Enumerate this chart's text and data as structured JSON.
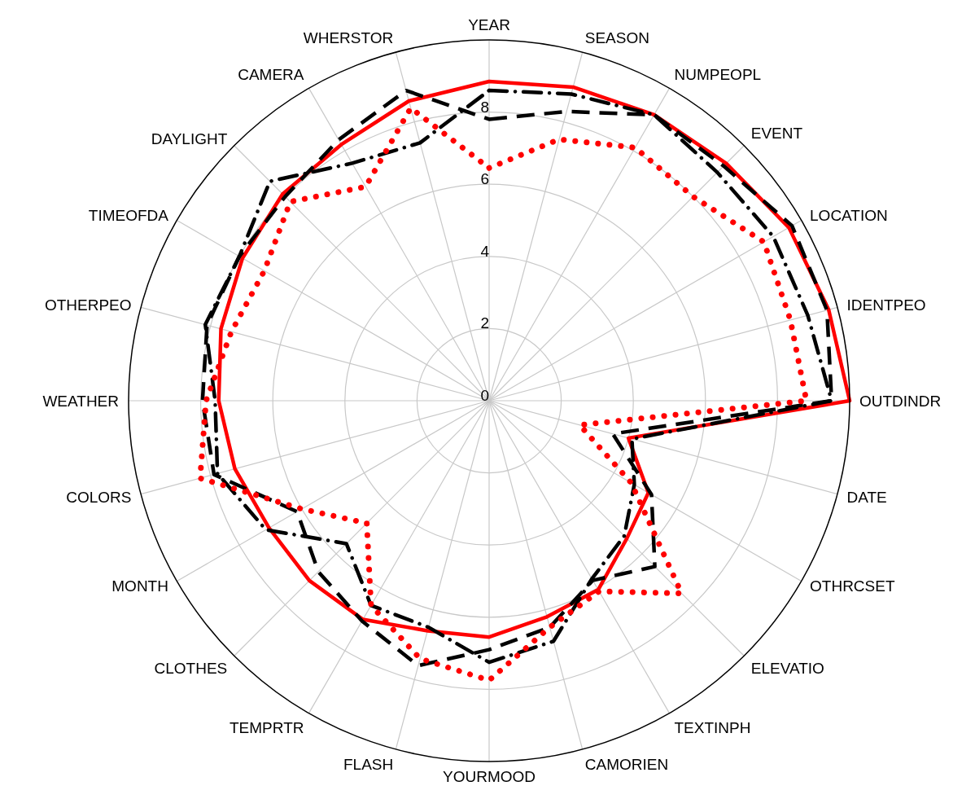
{
  "chart_data": {
    "type": "radar",
    "categories": [
      "YEAR",
      "SEASON",
      "NUMPEOPL",
      "EVENT",
      "LOCATION",
      "IDENTPEO",
      "OUTDINDR",
      "DATE",
      "OTHRCSET",
      "ELEVATIO",
      "TEXTINPH",
      "CAMORIEN",
      "YOURMOOD",
      "FLASH",
      "TEMPRTR",
      "CLOTHES",
      "MONTH",
      "COLORS",
      "WEATHER",
      "OTHERPEO",
      "TIMEOFDA",
      "DAYLIGHT",
      "CAMERA",
      "WHERSTOR"
    ],
    "series": [
      {
        "color": "#ff0000",
        "line_style": "solid",
        "values": [
          8.85,
          9.0,
          9.15,
          9.3,
          9.6,
          9.75,
          10,
          4.0,
          5.1,
          5.4,
          6.05,
          6.2,
          6.55,
          6.6,
          7.0,
          7.05,
          7.05,
          7.3,
          7.5,
          7.7,
          7.9,
          8.1,
          8.2,
          8.6
        ]
      },
      {
        "color": "#000000",
        "line_style": "dashed",
        "values": [
          7.8,
          8.3,
          9.15,
          9.2,
          9.7,
          9.7,
          9.5,
          3.55,
          5.2,
          6.5,
          5.75,
          6.5,
          6.9,
          7.6,
          7.05,
          6.7,
          6.15,
          7.9,
          7.95,
          8.1,
          8.0,
          8.0,
          8.35,
          8.9
        ]
      },
      {
        "color": "#000000",
        "line_style": "dashdot",
        "values": [
          8.6,
          8.8,
          9.15,
          8.95,
          9.1,
          9.15,
          9.5,
          4.1,
          4.65,
          5.3,
          5.7,
          6.9,
          7.25,
          6.5,
          6.55,
          5.6,
          7.15,
          7.8,
          7.6,
          8.15,
          8.0,
          8.6,
          7.6,
          7.4
        ]
      },
      {
        "color": "#ff0000",
        "line_style": "dotted",
        "values": [
          6.45,
          7.5,
          8.1,
          8.0,
          8.8,
          8.65,
          8.8,
          2.6,
          4.55,
          7.55,
          6.1,
          6.5,
          7.75,
          7.4,
          6.55,
          4.8,
          6.0,
          8.3,
          7.85,
          7.4,
          7.2,
          7.8,
          6.85,
          8.4
        ]
      }
    ],
    "ylim": [
      0,
      10
    ],
    "yticks": [
      0,
      2,
      4,
      6,
      8
    ],
    "grid": true,
    "marker": "none"
  }
}
